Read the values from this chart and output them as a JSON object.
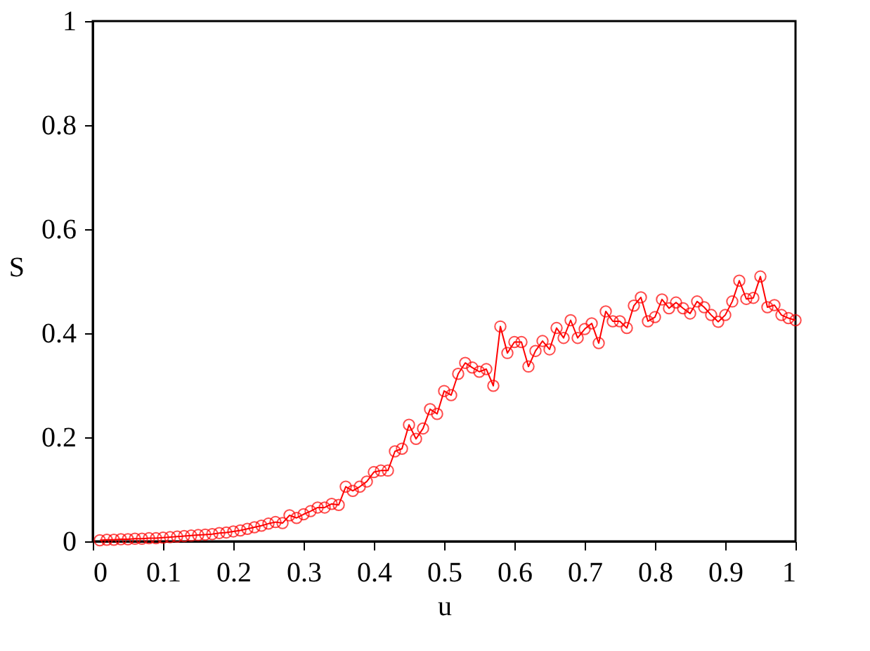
{
  "chart_data": {
    "type": "line",
    "xlabel": "u",
    "ylabel": "S",
    "x": [
      0.01,
      0.02,
      0.03,
      0.04,
      0.05,
      0.06,
      0.07,
      0.08,
      0.09,
      0.1,
      0.11,
      0.12,
      0.13,
      0.14,
      0.15,
      0.16,
      0.17,
      0.18,
      0.19,
      0.2,
      0.21,
      0.22,
      0.23,
      0.24,
      0.25,
      0.26,
      0.27,
      0.28,
      0.29,
      0.3,
      0.31,
      0.32,
      0.33,
      0.34,
      0.35,
      0.36,
      0.37,
      0.38,
      0.39,
      0.4,
      0.41,
      0.42,
      0.43,
      0.44,
      0.45,
      0.46,
      0.47,
      0.48,
      0.49,
      0.5,
      0.51,
      0.52,
      0.53,
      0.54,
      0.55,
      0.56,
      0.57,
      0.58,
      0.59,
      0.6,
      0.61,
      0.62,
      0.63,
      0.64,
      0.65,
      0.66,
      0.67,
      0.68,
      0.69,
      0.7,
      0.71,
      0.72,
      0.73,
      0.74,
      0.75,
      0.76,
      0.77,
      0.78,
      0.79,
      0.8,
      0.81,
      0.82,
      0.83,
      0.84,
      0.85,
      0.86,
      0.87,
      0.88,
      0.89,
      0.9,
      0.91,
      0.92,
      0.93,
      0.94,
      0.95,
      0.96,
      0.97,
      0.98,
      0.99,
      1.0
    ],
    "series": [
      {
        "color": "#ff0000",
        "values": [
          0.002,
          0.003,
          0.003,
          0.004,
          0.004,
          0.005,
          0.005,
          0.006,
          0.006,
          0.007,
          0.008,
          0.009,
          0.01,
          0.011,
          0.012,
          0.013,
          0.014,
          0.016,
          0.017,
          0.019,
          0.021,
          0.024,
          0.027,
          0.03,
          0.034,
          0.037,
          0.035,
          0.05,
          0.045,
          0.052,
          0.058,
          0.065,
          0.065,
          0.072,
          0.07,
          0.105,
          0.097,
          0.105,
          0.115,
          0.133,
          0.136,
          0.136,
          0.173,
          0.178,
          0.224,
          0.197,
          0.217,
          0.254,
          0.245,
          0.289,
          0.281,
          0.322,
          0.343,
          0.334,
          0.326,
          0.331,
          0.299,
          0.413,
          0.362,
          0.383,
          0.383,
          0.336,
          0.366,
          0.385,
          0.369,
          0.41,
          0.391,
          0.425,
          0.391,
          0.408,
          0.419,
          0.381,
          0.442,
          0.423,
          0.423,
          0.41,
          0.453,
          0.469,
          0.423,
          0.431,
          0.465,
          0.448,
          0.459,
          0.448,
          0.438,
          0.461,
          0.45,
          0.435,
          0.422,
          0.435,
          0.461,
          0.501,
          0.466,
          0.468,
          0.509,
          0.45,
          0.454,
          0.435,
          0.429,
          0.425
        ]
      }
    ],
    "xlim": [
      0,
      1
    ],
    "xticks": [
      0,
      0.1,
      0.2,
      0.3,
      0.4,
      0.5,
      0.6,
      0.7,
      0.8,
      0.9,
      1
    ],
    "ylim": [
      0,
      1
    ],
    "yticks": [
      0,
      0.2,
      0.4,
      0.6,
      0.8,
      1
    ],
    "marker": "circle",
    "line_style": "solid",
    "grid": false
  }
}
